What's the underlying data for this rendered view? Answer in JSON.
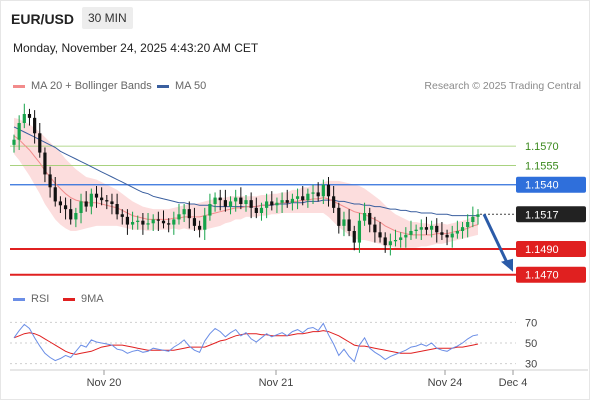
{
  "header": {
    "symbol": "EUR/USD",
    "timeframe": "30 MIN",
    "datetime": "Monday, November 24, 2025 4:43:20 AM CET"
  },
  "credit": "Research © 2025 Trading Central",
  "colors": {
    "up": "#16a34a",
    "down": "#111111",
    "ma20": "#f28b8b",
    "ma50": "#3a5f9f",
    "bands": "#fbd2d2",
    "resistance": "#2f6fdb",
    "support": "#e02020",
    "target_green": "#9ccc6d",
    "label_dark": "#222222",
    "rsi": "#6b8ee6",
    "rsi_ma": "#e02020"
  },
  "chart_data": [
    {
      "type": "candlestick",
      "title": "EUR/USD",
      "timeframe": "30 MIN",
      "legend": [
        "MA 20 + Bollinger Bands",
        "MA 50"
      ],
      "x_tick_labels": [
        "Nov 20",
        "Nov 21",
        "Nov 24",
        "Dec 4"
      ],
      "ylim": [
        1.1462,
        1.1602
      ],
      "grid": false,
      "last_price": 1.1517,
      "close_series": [
        1.1575,
        1.1588,
        1.1595,
        1.1592,
        1.158,
        1.1565,
        1.1548,
        1.1538,
        1.1527,
        1.1524,
        1.1521,
        1.1513,
        1.1518,
        1.1527,
        1.1523,
        1.1533,
        1.153,
        1.1528,
        1.1527,
        1.1525,
        1.1517,
        1.1515,
        1.1509,
        1.1511,
        1.1512,
        1.1509,
        1.151,
        1.1513,
        1.1512,
        1.151,
        1.1509,
        1.1513,
        1.1517,
        1.1521,
        1.1514,
        1.1508,
        1.1505,
        1.1516,
        1.1525,
        1.153,
        1.1528,
        1.1523,
        1.1527,
        1.153,
        1.1525,
        1.1528,
        1.1522,
        1.1518,
        1.1522,
        1.1527,
        1.1524,
        1.1526,
        1.1528,
        1.1526,
        1.1529,
        1.1531,
        1.1528,
        1.1533,
        1.1534,
        1.1531,
        1.154,
        1.1531,
        1.1522,
        1.1508,
        1.1513,
        1.1504,
        1.1495,
        1.1512,
        1.1518,
        1.1509,
        1.1503,
        1.1499,
        1.1493,
        1.1496,
        1.1497,
        1.1499,
        1.1501,
        1.1504,
        1.1505,
        1.1507,
        1.1505,
        1.1508,
        1.1503,
        1.1501,
        1.1499,
        1.1502,
        1.1504,
        1.1507,
        1.1511,
        1.1515,
        1.1517
      ],
      "moving_averages": [
        {
          "name": "MA 20",
          "values": [
            1.1578,
            1.1575,
            1.1571,
            1.1567,
            1.1562,
            1.1557,
            1.1551,
            1.1546,
            1.1541,
            1.1537,
            1.1533,
            1.153,
            1.1528,
            1.1527,
            1.1526,
            1.1526,
            1.1526,
            1.1525,
            1.1524,
            1.1523,
            1.1522,
            1.152,
            1.1518,
            1.1516,
            1.1515,
            1.1514,
            1.1513,
            1.1513,
            1.1513,
            1.1513,
            1.1513,
            1.1514,
            1.1514,
            1.1515,
            1.1515,
            1.1515,
            1.1515,
            1.1516,
            1.1517,
            1.1518,
            1.1519,
            1.152,
            1.1521,
            1.1522,
            1.1522,
            1.1523,
            1.1523,
            1.1523,
            1.1524,
            1.1524,
            1.1525,
            1.1525,
            1.1526,
            1.1526,
            1.1527,
            1.1527,
            1.1528,
            1.1528,
            1.1529,
            1.1529,
            1.153,
            1.1529,
            1.1527,
            1.1525,
            1.1523,
            1.1521,
            1.1519,
            1.1518,
            1.1517,
            1.1515,
            1.1513,
            1.1511,
            1.1508,
            1.1506,
            1.1504,
            1.1503,
            1.1502,
            1.1501,
            1.1501,
            1.1501,
            1.1501,
            1.1501,
            1.1502,
            1.1502,
            1.1502,
            1.1503,
            1.1504,
            1.1505,
            1.1506,
            1.1508,
            1.1509
          ]
        },
        {
          "name": "MA 50",
          "values": [
            1.1585,
            1.1583,
            1.1581,
            1.1579,
            1.1577,
            1.1575,
            1.1573,
            1.1571,
            1.1569,
            1.1566,
            1.1564,
            1.1562,
            1.156,
            1.1558,
            1.1556,
            1.1554,
            1.1552,
            1.155,
            1.1548,
            1.1546,
            1.1544,
            1.1542,
            1.154,
            1.1538,
            1.1536,
            1.1534,
            1.1533,
            1.1531,
            1.153,
            1.1529,
            1.1528,
            1.1527,
            1.1526,
            1.1526,
            1.1525,
            1.1525,
            1.1524,
            1.1524,
            1.1524,
            1.1523,
            1.1523,
            1.1523,
            1.1523,
            1.1523,
            1.1523,
            1.1523,
            1.1523,
            1.1523,
            1.1524,
            1.1524,
            1.1524,
            1.1525,
            1.1525,
            1.1525,
            1.1526,
            1.1526,
            1.1526,
            1.1527,
            1.1527,
            1.1527,
            1.1528,
            1.1528,
            1.1528,
            1.1527,
            1.1527,
            1.1526,
            1.1525,
            1.1525,
            1.1524,
            1.1524,
            1.1523,
            1.1523,
            1.1522,
            1.1521,
            1.1521,
            1.152,
            1.152,
            1.1519,
            1.1519,
            1.1518,
            1.1518,
            1.1518,
            1.1517,
            1.1517,
            1.1517,
            1.1516,
            1.1516,
            1.1516,
            1.1516,
            1.1516,
            1.1516
          ]
        }
      ],
      "bollinger_half_width": [
        0.0014,
        0.0016,
        0.0018,
        0.002,
        0.0022,
        0.0024,
        0.0026,
        0.0027,
        0.0028,
        0.0028,
        0.0027,
        0.0026,
        0.0024,
        0.0022,
        0.002,
        0.0019,
        0.0018,
        0.0017,
        0.0016,
        0.0015,
        0.0014,
        0.0013,
        0.0012,
        0.0011,
        0.001,
        0.0009,
        0.0009,
        0.0008,
        0.0008,
        0.0008,
        0.0008,
        0.0008,
        0.0009,
        0.0009,
        0.001,
        0.001,
        0.0011,
        0.0011,
        0.0011,
        0.0011,
        0.0011,
        0.001,
        0.001,
        0.0009,
        0.0009,
        0.0008,
        0.0008,
        0.0008,
        0.0008,
        0.0008,
        0.0008,
        0.0008,
        0.0008,
        0.0008,
        0.0009,
        0.0009,
        0.001,
        0.001,
        0.0011,
        0.0011,
        0.0012,
        0.0014,
        0.0016,
        0.0018,
        0.0019,
        0.002,
        0.0021,
        0.0021,
        0.002,
        0.0019,
        0.0018,
        0.0017,
        0.0016,
        0.0014,
        0.0013,
        0.0012,
        0.0011,
        0.001,
        0.001,
        0.0009,
        0.0009,
        0.0008,
        0.0008,
        0.0008,
        0.0007,
        0.0007,
        0.0007,
        0.0007,
        0.0007,
        0.0008,
        0.0008
      ],
      "levels": [
        {
          "value": 1.157,
          "label": "1.1570",
          "kind": "target"
        },
        {
          "value": 1.1555,
          "label": "1.1555",
          "kind": "target"
        },
        {
          "value": 1.154,
          "label": "1.1540",
          "kind": "resistance"
        },
        {
          "value": 1.1517,
          "label": "1.1517",
          "kind": "last"
        },
        {
          "value": 1.149,
          "label": "1.1490",
          "kind": "support"
        },
        {
          "value": 1.147,
          "label": "1.1470",
          "kind": "support"
        }
      ],
      "projection": {
        "from": 1.1517,
        "to": 1.147
      }
    },
    {
      "type": "line",
      "legend": [
        "RSI",
        "9MA"
      ],
      "ylim": [
        20,
        80
      ],
      "y_tick_labels": [
        "70",
        "50",
        "30"
      ],
      "dashed_levels": [
        70,
        50,
        30
      ],
      "series": [
        {
          "name": "RSI",
          "values": [
            55,
            62,
            68,
            64,
            55,
            47,
            40,
            36,
            33,
            35,
            38,
            36,
            42,
            48,
            46,
            53,
            51,
            50,
            49,
            48,
            44,
            43,
            40,
            42,
            43,
            41,
            42,
            45,
            44,
            43,
            42,
            46,
            49,
            53,
            47,
            43,
            41,
            52,
            59,
            64,
            61,
            56,
            60,
            63,
            57,
            60,
            54,
            51,
            55,
            59,
            56,
            58,
            60,
            57,
            61,
            63,
            60,
            64,
            65,
            62,
            69,
            58,
            49,
            38,
            44,
            37,
            32,
            48,
            55,
            45,
            41,
            38,
            34,
            37,
            39,
            41,
            43,
            46,
            47,
            49,
            47,
            50,
            45,
            43,
            42,
            45,
            47,
            50,
            54,
            57,
            58
          ]
        },
        {
          "name": "9MA",
          "values": [
            55,
            57,
            59,
            60,
            59,
            57,
            54,
            51,
            48,
            45,
            42,
            40,
            39,
            40,
            41,
            42,
            44,
            46,
            47,
            48,
            48,
            48,
            47,
            46,
            45,
            44,
            43,
            43,
            43,
            43,
            43,
            43,
            44,
            45,
            46,
            46,
            46,
            46,
            48,
            50,
            52,
            53,
            55,
            57,
            58,
            59,
            59,
            59,
            58,
            58,
            57,
            57,
            57,
            57,
            58,
            59,
            59,
            60,
            61,
            61,
            62,
            61,
            59,
            57,
            54,
            51,
            48,
            47,
            47,
            46,
            45,
            44,
            43,
            42,
            41,
            40,
            40,
            40,
            41,
            42,
            43,
            44,
            45,
            45,
            45,
            45,
            46,
            46,
            47,
            48,
            49
          ]
        }
      ]
    }
  ]
}
